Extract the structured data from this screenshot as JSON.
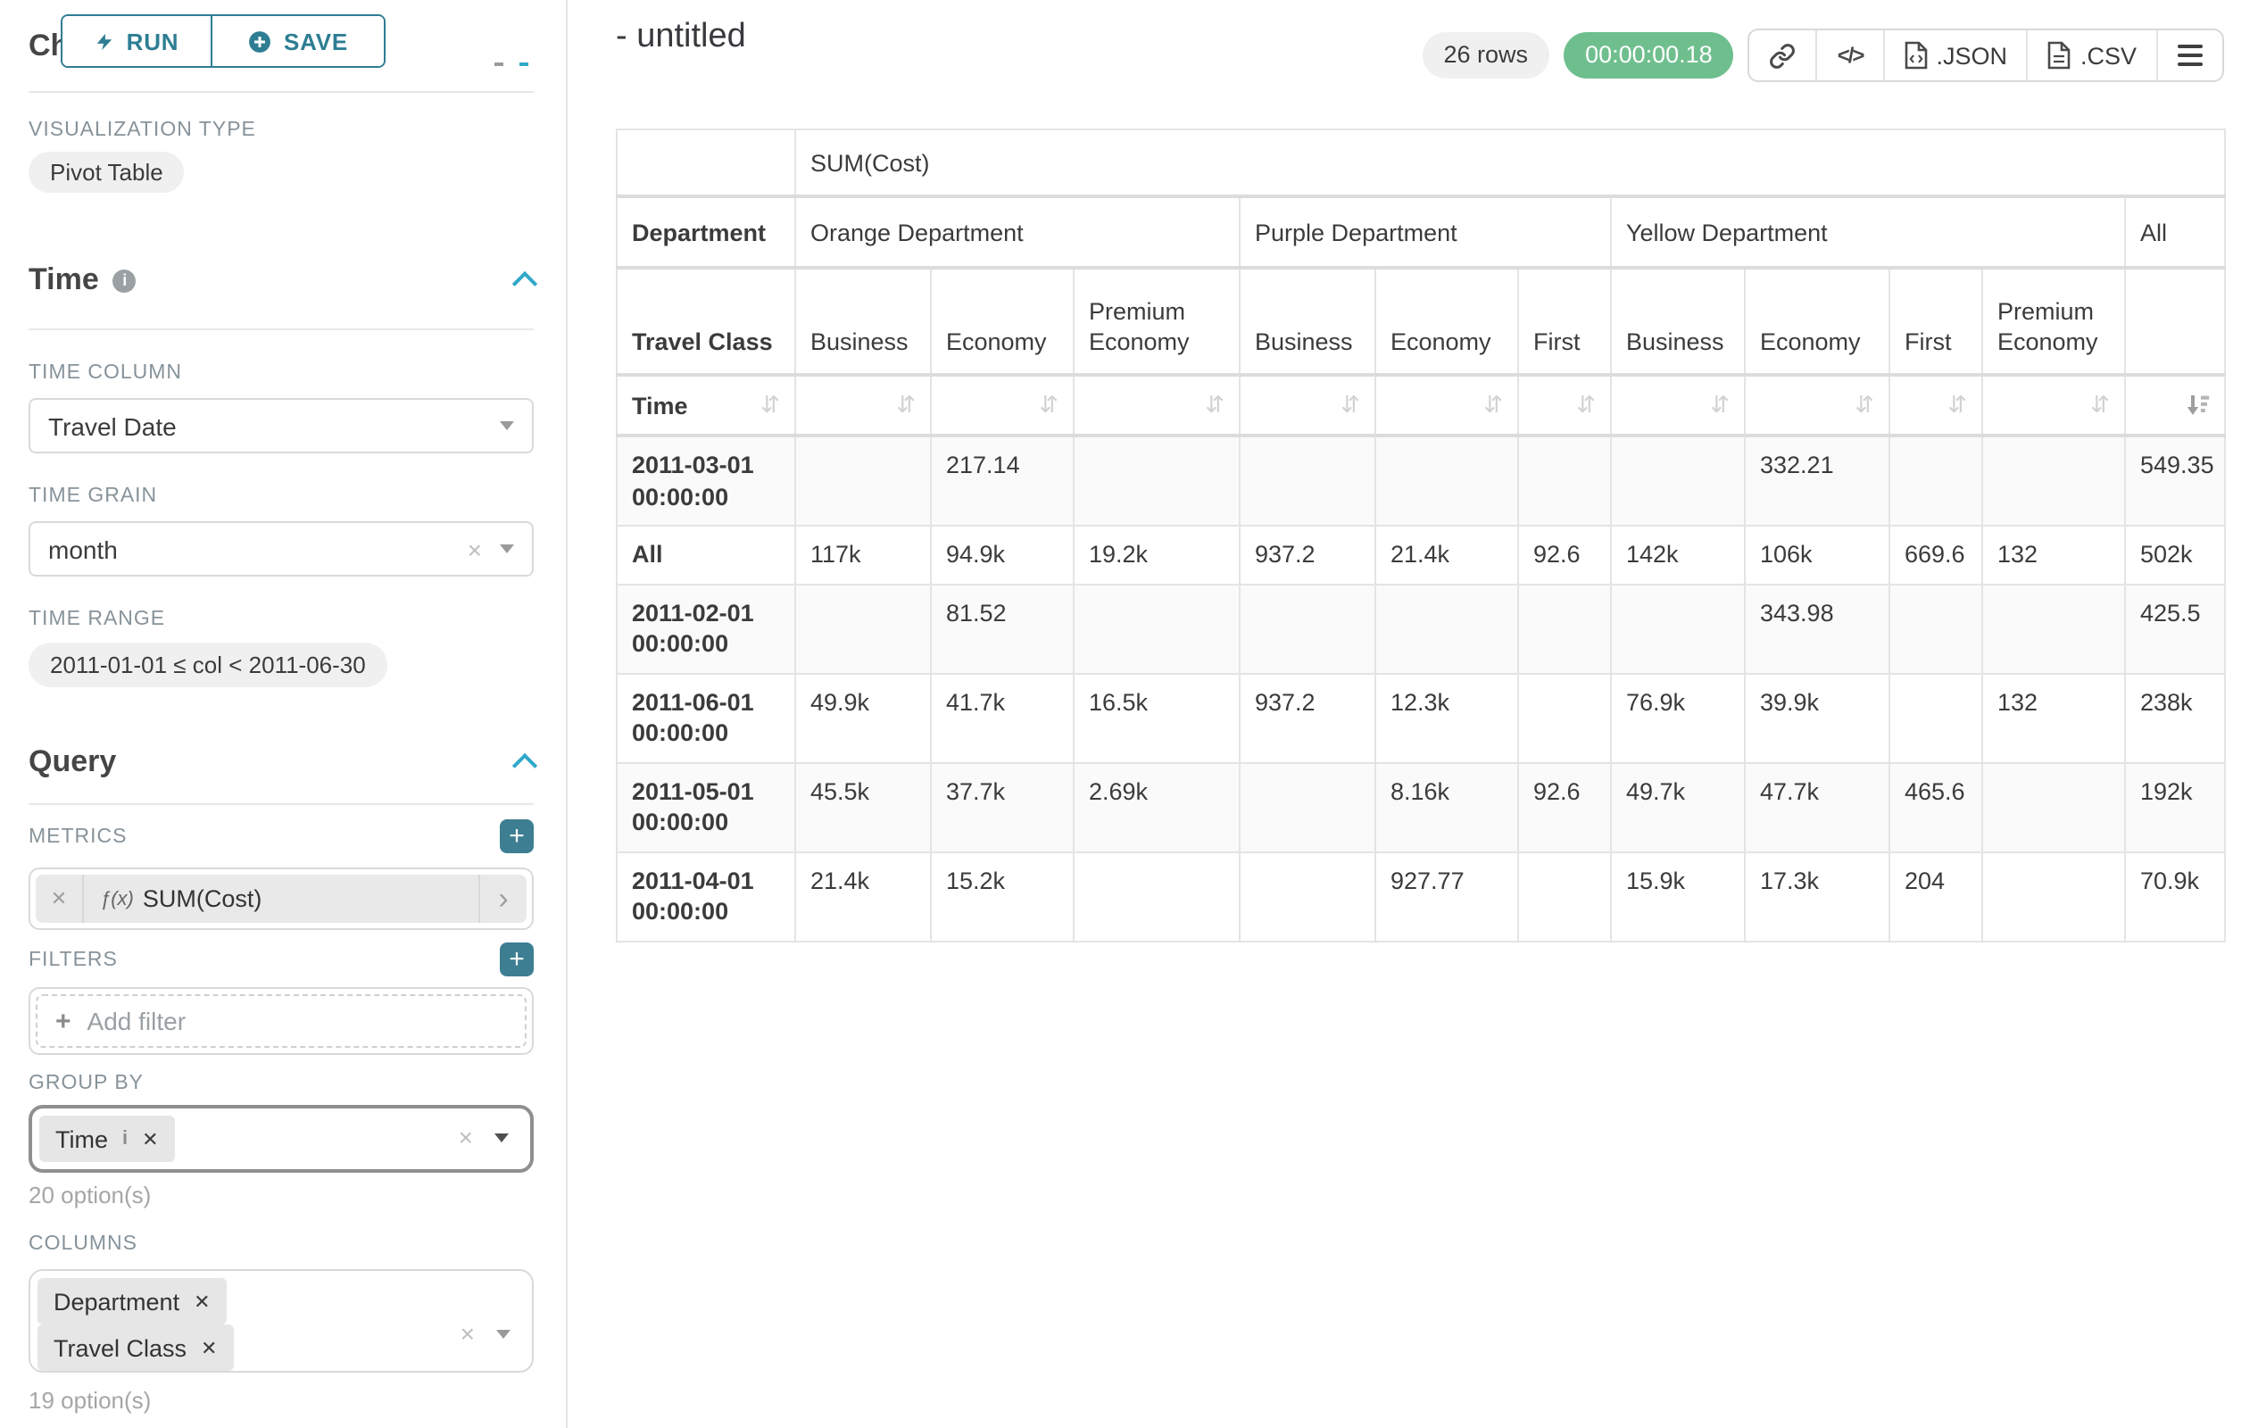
{
  "colors": {
    "accent": "#2e7d93",
    "accent_bright": "#2fa8c9",
    "success_green": "#6fbf8e",
    "pill_gray": "#f0f0f0"
  },
  "glyphs": {
    "plus": "+",
    "close": "✕",
    "clear": "×",
    "caret_right": "›",
    "sort_inactive": "⇵",
    "code": "</>",
    "info": "i"
  },
  "sidebar": {
    "run_label": "RUN",
    "save_label": "SAVE",
    "chart_type_heading": "Chart Type",
    "visualization_type": {
      "label": "VISUALIZATION TYPE",
      "value": "Pivot Table"
    },
    "time_section": {
      "heading": "Time",
      "time_column": {
        "label": "TIME COLUMN",
        "value": "Travel Date"
      },
      "time_grain": {
        "label": "TIME GRAIN",
        "value": "month"
      },
      "time_range": {
        "label": "TIME RANGE",
        "value": "2011-01-01 ≤ col < 2011-06-30"
      }
    },
    "query_section": {
      "heading": "Query",
      "metrics": {
        "label": "METRICS",
        "fx": "ƒ(x)",
        "value": "SUM(Cost)"
      },
      "filters": {
        "label": "FILTERS",
        "placeholder": "Add filter"
      },
      "group_by": {
        "label": "GROUP BY",
        "chips": [
          "Time"
        ],
        "options_hint": "20 option(s)"
      },
      "columns": {
        "label": "COLUMNS",
        "chips": [
          "Department",
          "Travel Class"
        ],
        "options_hint": "19 option(s)"
      }
    }
  },
  "header": {
    "title": "- untitled",
    "rows_badge": "26 rows",
    "timer": "00:00:00.18",
    "json_label": ".JSON",
    "csv_label": ".CSV"
  },
  "table": {
    "corner_metric": "SUM(Cost)",
    "col_dim_labels": [
      "Department",
      "Travel Class"
    ],
    "row_dim_label": "Time",
    "groups": [
      {
        "label": "Orange Department",
        "span": 3
      },
      {
        "label": "Purple Department",
        "span": 3
      },
      {
        "label": "Yellow Department",
        "span": 4
      },
      {
        "label": "All",
        "span": 1
      }
    ],
    "subcols": [
      "Business",
      "Economy",
      "Premium Economy",
      "Business",
      "Economy",
      "First",
      "Business",
      "Economy",
      "First",
      "Premium Economy",
      ""
    ],
    "sorted_column_index": 10,
    "rows": [
      {
        "label": "2011-03-01 00:00:00",
        "values": [
          "",
          "217.14",
          "",
          "",
          "",
          "",
          "",
          "332.21",
          "",
          "",
          "549.35"
        ]
      },
      {
        "label": "All",
        "values": [
          "117k",
          "94.9k",
          "19.2k",
          "937.2",
          "21.4k",
          "92.6",
          "142k",
          "106k",
          "669.6",
          "132",
          "502k"
        ]
      },
      {
        "label": "2011-02-01 00:00:00",
        "values": [
          "",
          "81.52",
          "",
          "",
          "",
          "",
          "",
          "343.98",
          "",
          "",
          "425.5"
        ]
      },
      {
        "label": "2011-06-01 00:00:00",
        "values": [
          "49.9k",
          "41.7k",
          "16.5k",
          "937.2",
          "12.3k",
          "",
          "76.9k",
          "39.9k",
          "",
          "132",
          "238k"
        ]
      },
      {
        "label": "2011-05-01 00:00:00",
        "values": [
          "45.5k",
          "37.7k",
          "2.69k",
          "",
          "8.16k",
          "92.6",
          "49.7k",
          "47.7k",
          "465.6",
          "",
          "192k"
        ]
      },
      {
        "label": "2011-04-01 00:00:00",
        "values": [
          "21.4k",
          "15.2k",
          "",
          "",
          "927.77",
          "",
          "15.9k",
          "17.3k",
          "204",
          "",
          "70.9k"
        ]
      }
    ]
  }
}
